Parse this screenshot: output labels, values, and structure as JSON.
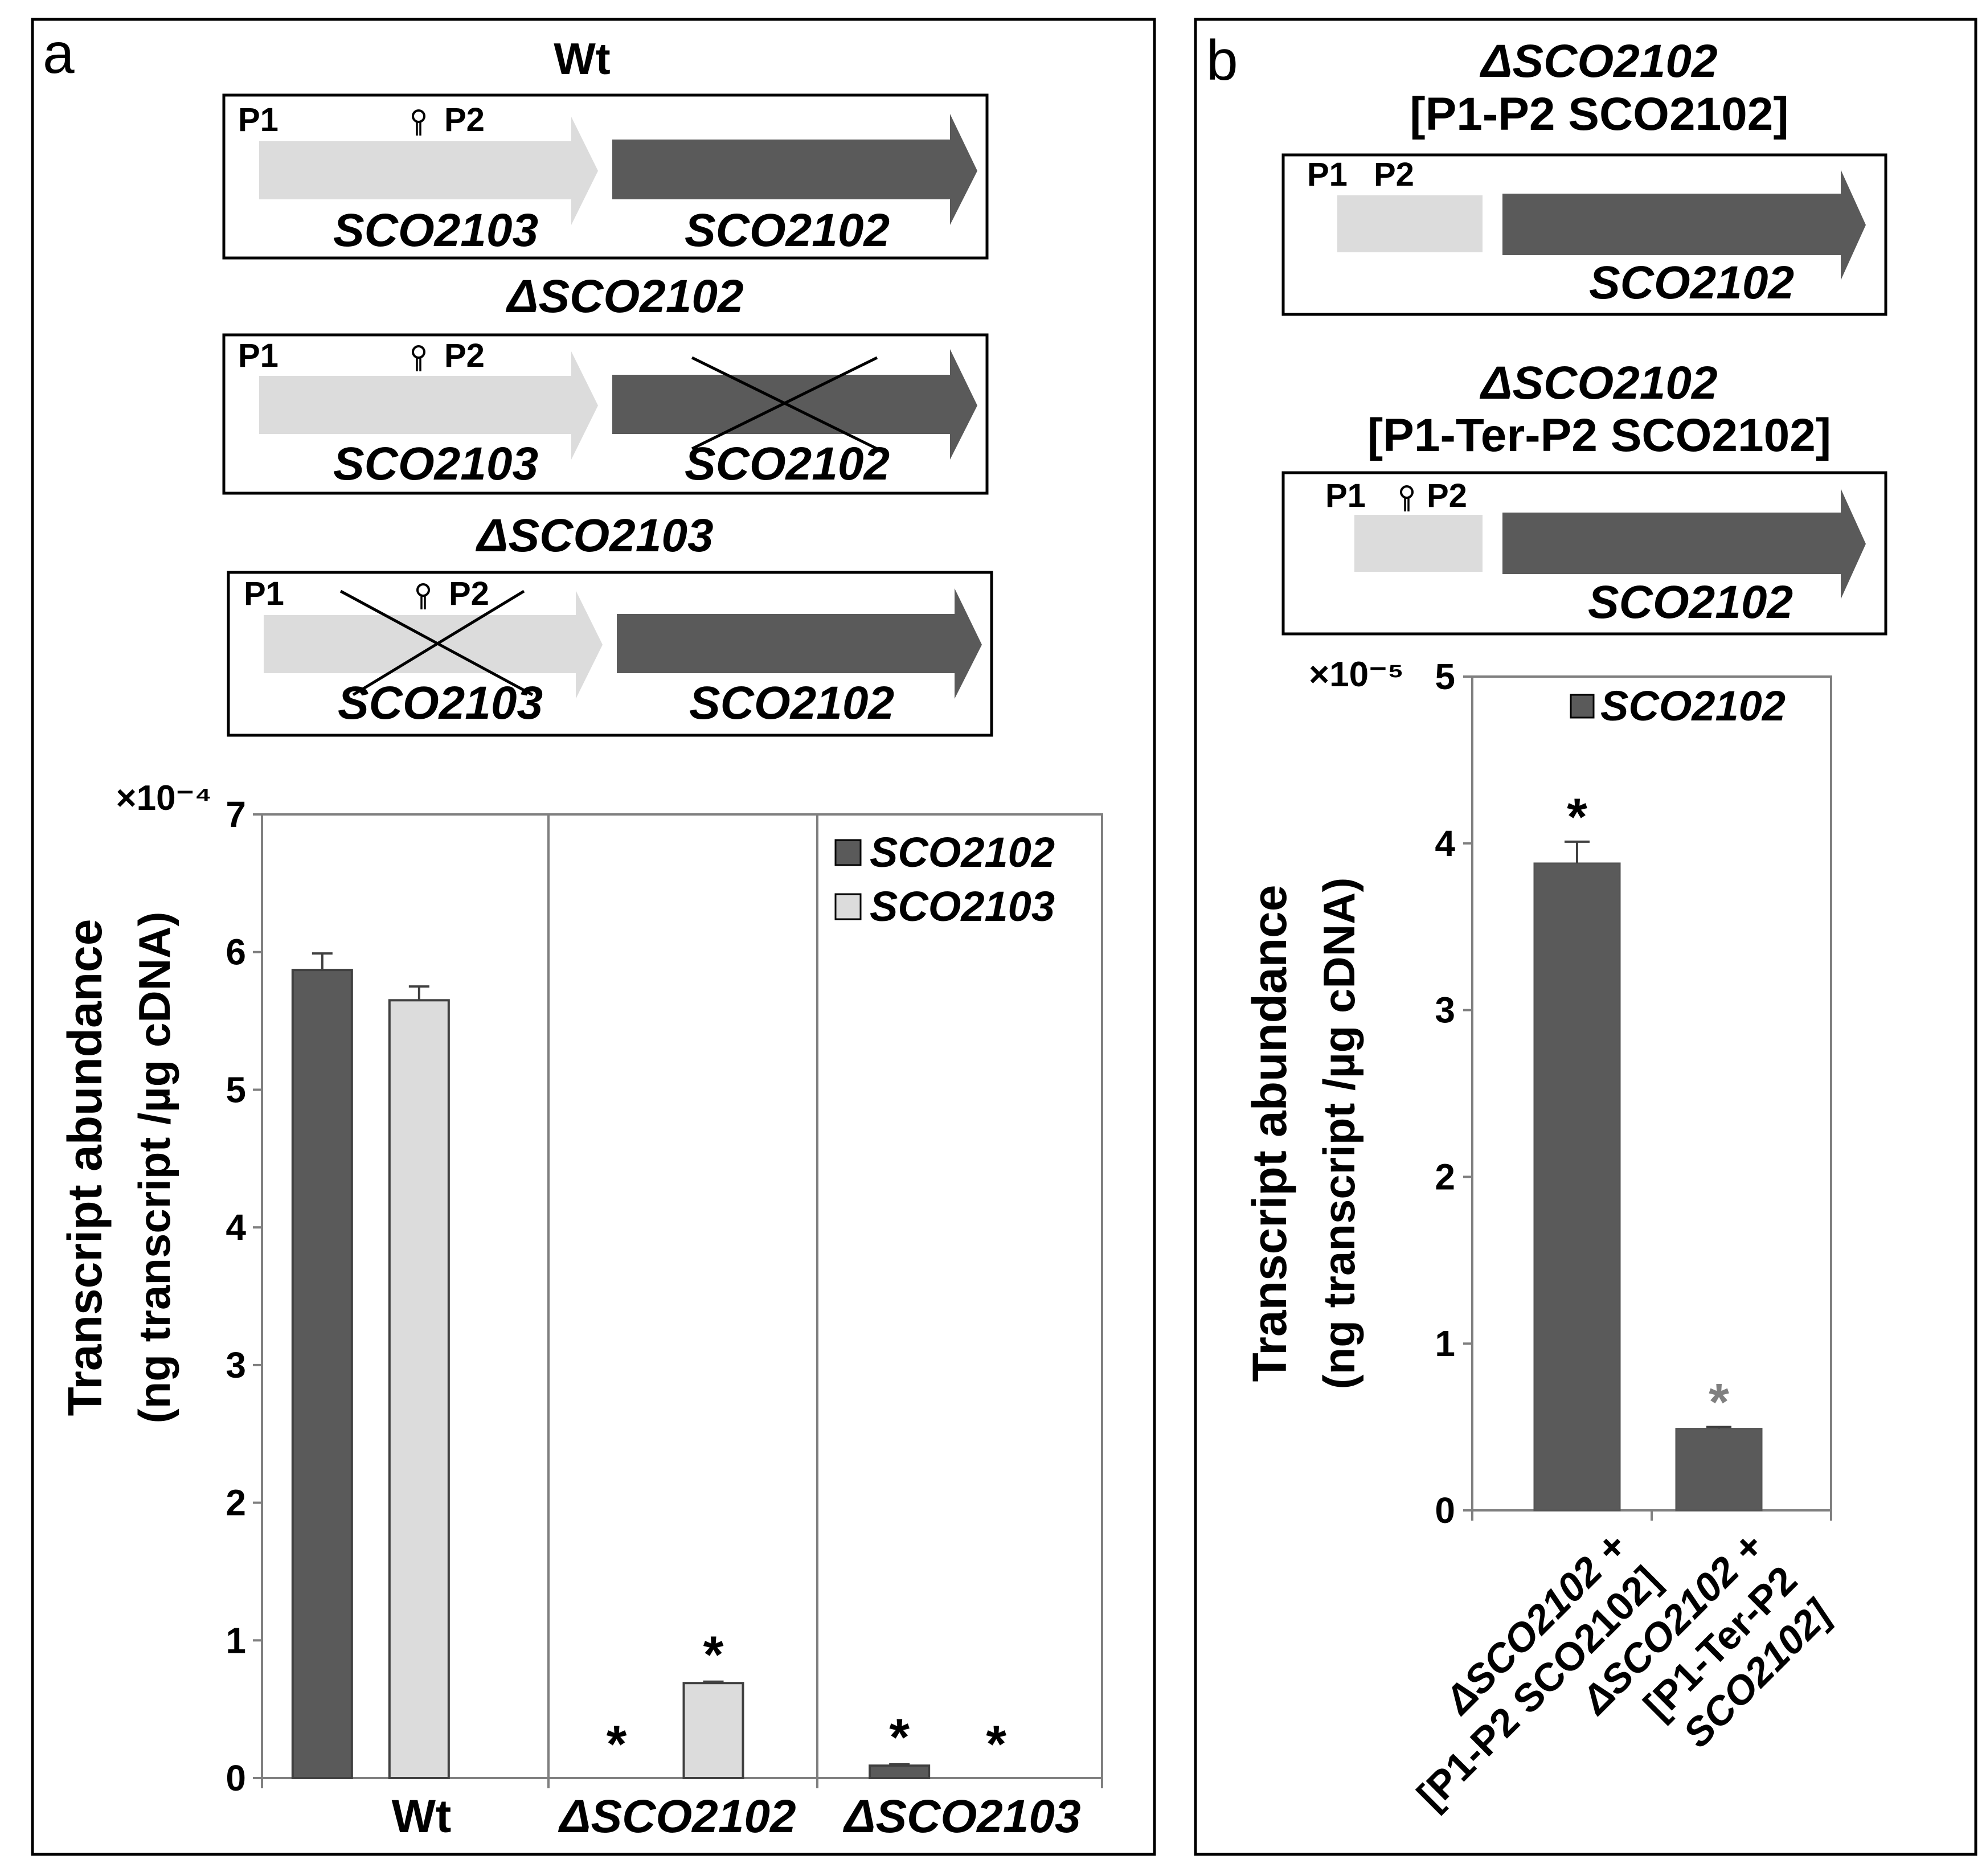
{
  "panel_a": {
    "letter": "a",
    "constructs": [
      {
        "title": "Wt",
        "promoter1": "P1",
        "promoter2": "P2",
        "gene1": "SCO2103",
        "gene2": "SCO2102"
      },
      {
        "title": "ΔSCO2102",
        "promoter1": "P1",
        "promoter2": "P2",
        "gene1": "SCO2103",
        "gene2": "SCO2102"
      },
      {
        "title": "ΔSCO2103",
        "promoter1": "P1",
        "promoter2": "P2",
        "gene1": "SCO2103",
        "gene2": "SCO2102"
      }
    ]
  },
  "panel_b": {
    "letter": "b",
    "constructs": [
      {
        "title1": "ΔSCO2102",
        "title2": "[P1-P2 SCO2102]",
        "promoter1": "P1",
        "promoter2": "P2",
        "gene": "SCO2102"
      },
      {
        "title1": "ΔSCO2102",
        "title2": "[P1-Ter-P2 SCO2102]",
        "promoter1": "P1",
        "promoter2": "P2",
        "gene": "SCO2102"
      }
    ]
  },
  "colors": {
    "dark": "#5a5a5a",
    "light": "#dcdcdc",
    "axis": "#7f7f7f",
    "star_gray": "#808080"
  },
  "chart_data": [
    {
      "type": "bar",
      "panel": "a",
      "ylabel1": "Transcript abundance",
      "ylabel2": "(ng transcript /µg cDNA)",
      "multiplier": "×10⁻⁴",
      "ylim": [
        0,
        7
      ],
      "yticks": [
        "0",
        "1",
        "2",
        "3",
        "4",
        "5",
        "6",
        "7"
      ],
      "categories": [
        "Wt",
        "ΔSCO2102",
        "ΔSCO2103"
      ],
      "legend": [
        "SCO2102",
        "SCO2103"
      ],
      "series": [
        {
          "name": "SCO2102",
          "values": [
            5.87,
            0.0,
            0.09
          ],
          "errors": [
            0.12,
            0.0,
            0.01
          ],
          "star": [
            false,
            true,
            true
          ]
        },
        {
          "name": "SCO2103",
          "values": [
            5.65,
            0.69,
            0.0
          ],
          "errors": [
            0.1,
            0.01,
            0.0
          ],
          "star": [
            false,
            true,
            true
          ]
        }
      ]
    },
    {
      "type": "bar",
      "panel": "b",
      "ylabel1": "Transcript abundance",
      "ylabel2": "(ng transcript /µg cDNA)",
      "multiplier": "×10⁻⁵",
      "ylim": [
        0,
        5
      ],
      "yticks": [
        "0",
        "1",
        "2",
        "3",
        "4",
        "5"
      ],
      "legend": [
        "SCO2102"
      ],
      "categories": [
        {
          "line1": "ΔSCO2102 +",
          "line2": "[P1-P2 SCO2102]"
        },
        {
          "line1": "ΔSCO2102 +",
          "line2": "[P1-Ter-P2",
          "line3": "SCO2102]"
        }
      ],
      "series": [
        {
          "name": "SCO2102",
          "values": [
            3.88,
            0.49
          ],
          "errors": [
            0.13,
            0.01
          ],
          "star": [
            true,
            true
          ]
        }
      ]
    }
  ]
}
